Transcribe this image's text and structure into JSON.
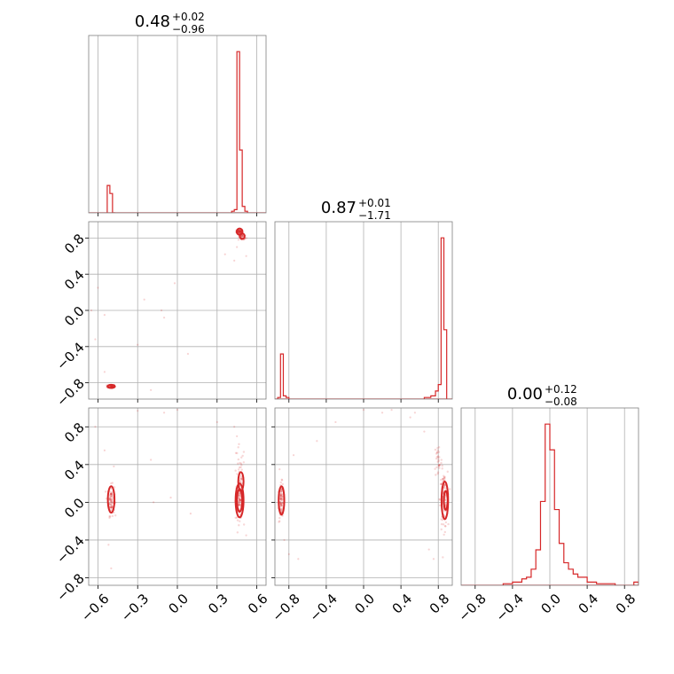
{
  "chart_data": {
    "type": "corner",
    "color": "#d62728",
    "grid": true,
    "panels": [
      {
        "kind": "histogram",
        "row": 0,
        "col": 0,
        "title": {
          "value": "0.48",
          "upper": "+0.02",
          "lower": "−0.96"
        },
        "xlim": [
          -0.67,
          0.67
        ],
        "ylim": [
          0,
          1.1
        ],
        "bins": [
          {
            "x0": -0.53,
            "x1": -0.51,
            "y": 0.17
          },
          {
            "x0": -0.51,
            "x1": -0.49,
            "y": 0.12
          },
          {
            "x0": -0.49,
            "x1": -0.47,
            "y": 0.0
          },
          {
            "x0": 0.41,
            "x1": 0.43,
            "y": 0.01
          },
          {
            "x0": 0.43,
            "x1": 0.45,
            "y": 0.02
          },
          {
            "x0": 0.45,
            "x1": 0.47,
            "y": 1.0
          },
          {
            "x0": 0.47,
            "x1": 0.49,
            "y": 0.39
          },
          {
            "x0": 0.49,
            "x1": 0.51,
            "y": 0.04
          },
          {
            "x0": 0.51,
            "x1": 0.53,
            "y": 0.01
          }
        ]
      },
      {
        "kind": "histogram",
        "row": 1,
        "col": 1,
        "title": {
          "value": "0.87",
          "upper": "+0.01",
          "lower": "−1.71"
        },
        "xlim": [
          -0.95,
          0.95
        ],
        "ylim": [
          0,
          1.1
        ],
        "bins": [
          {
            "x0": -0.92,
            "x1": -0.89,
            "y": 0.01
          },
          {
            "x0": -0.89,
            "x1": -0.86,
            "y": 0.28
          },
          {
            "x0": -0.86,
            "x1": -0.83,
            "y": 0.02
          },
          {
            "x0": -0.83,
            "x1": -0.8,
            "y": 0.01
          },
          {
            "x0": 0.65,
            "x1": 0.72,
            "y": 0.01
          },
          {
            "x0": 0.72,
            "x1": 0.77,
            "y": 0.02
          },
          {
            "x0": 0.77,
            "x1": 0.8,
            "y": 0.05
          },
          {
            "x0": 0.8,
            "x1": 0.83,
            "y": 0.09
          },
          {
            "x0": 0.83,
            "x1": 0.86,
            "y": 1.0
          },
          {
            "x0": 0.86,
            "x1": 0.89,
            "y": 0.43
          }
        ]
      },
      {
        "kind": "histogram",
        "row": 2,
        "col": 2,
        "title": {
          "value": "0.00",
          "upper": "+0.12",
          "lower": "−0.08"
        },
        "xlim": [
          -0.95,
          0.95
        ],
        "ylim": [
          0,
          1.1
        ],
        "bins": [
          {
            "x0": -0.5,
            "x1": -0.4,
            "y": 0.01
          },
          {
            "x0": -0.4,
            "x1": -0.3,
            "y": 0.02
          },
          {
            "x0": -0.3,
            "x1": -0.25,
            "y": 0.04
          },
          {
            "x0": -0.25,
            "x1": -0.2,
            "y": 0.05
          },
          {
            "x0": -0.2,
            "x1": -0.15,
            "y": 0.1
          },
          {
            "x0": -0.15,
            "x1": -0.1,
            "y": 0.22
          },
          {
            "x0": -0.1,
            "x1": -0.05,
            "y": 0.52
          },
          {
            "x0": -0.05,
            "x1": 0.0,
            "y": 1.0
          },
          {
            "x0": 0.0,
            "x1": 0.05,
            "y": 0.84
          },
          {
            "x0": 0.05,
            "x1": 0.1,
            "y": 0.47
          },
          {
            "x0": 0.1,
            "x1": 0.15,
            "y": 0.26
          },
          {
            "x0": 0.15,
            "x1": 0.2,
            "y": 0.14
          },
          {
            "x0": 0.2,
            "x1": 0.25,
            "y": 0.1
          },
          {
            "x0": 0.25,
            "x1": 0.3,
            "y": 0.07
          },
          {
            "x0": 0.3,
            "x1": 0.4,
            "y": 0.05
          },
          {
            "x0": 0.4,
            "x1": 0.5,
            "y": 0.02
          },
          {
            "x0": 0.5,
            "x1": 0.7,
            "y": 0.01
          },
          {
            "x0": 0.9,
            "x1": 0.95,
            "y": 0.02
          }
        ]
      },
      {
        "kind": "scatter",
        "row": 1,
        "col": 0,
        "xlim": [
          -0.67,
          0.67
        ],
        "ylim": [
          -0.98,
          0.98
        ],
        "clusters": [
          {
            "cx": 0.47,
            "cy": 0.87,
            "sx": 0.012,
            "sy": 0.012,
            "n": 70
          },
          {
            "cx": 0.49,
            "cy": 0.81,
            "sx": 0.015,
            "sy": 0.02,
            "n": 40
          },
          {
            "cx": -0.5,
            "cy": -0.84,
            "sx": 0.015,
            "sy": 0.01,
            "n": 60
          }
        ],
        "outliers": [
          [
            -0.6,
            0.25
          ],
          [
            -0.55,
            -0.05
          ],
          [
            -0.3,
            -0.38
          ],
          [
            -0.25,
            0.12
          ],
          [
            -0.12,
            0.0
          ],
          [
            -0.1,
            -0.08
          ],
          [
            -0.02,
            0.3
          ],
          [
            0.08,
            -0.48
          ],
          [
            0.36,
            0.62
          ],
          [
            0.43,
            0.55
          ],
          [
            -0.62,
            -0.32
          ],
          [
            -0.55,
            -0.68
          ],
          [
            -0.2,
            -0.88
          ],
          [
            0.45,
            0.7
          ],
          [
            0.52,
            0.6
          ],
          [
            -0.65,
            0.0
          ]
        ],
        "contours": [
          {
            "cx": 0.47,
            "cy": 0.87,
            "rx": 0.022,
            "ry": 0.035
          },
          {
            "cx": 0.49,
            "cy": 0.82,
            "rx": 0.018,
            "ry": 0.03
          },
          {
            "cx": -0.5,
            "cy": -0.84,
            "rx": 0.028,
            "ry": 0.018
          }
        ]
      },
      {
        "kind": "scatter",
        "row": 2,
        "col": 0,
        "xlim": [
          -0.67,
          0.67
        ],
        "ylim": [
          -0.88,
          1.0
        ],
        "clusters": [
          {
            "cx": -0.5,
            "cy": 0.02,
            "sx": 0.012,
            "sy": 0.08,
            "n": 90
          },
          {
            "cx": 0.47,
            "cy": 0.02,
            "sx": 0.015,
            "sy": 0.1,
            "n": 120
          },
          {
            "cx": 0.47,
            "cy": 0.3,
            "sx": 0.02,
            "sy": 0.15,
            "n": 30
          }
        ],
        "outliers": [
          [
            -0.55,
            0.55
          ],
          [
            -0.48,
            0.38
          ],
          [
            -0.52,
            -0.45
          ],
          [
            -0.5,
            -0.7
          ],
          [
            -0.2,
            0.45
          ],
          [
            -0.1,
            0.95
          ],
          [
            0.0,
            0.98
          ],
          [
            -0.05,
            0.05
          ],
          [
            0.3,
            0.85
          ],
          [
            0.43,
            0.8
          ],
          [
            0.52,
            -0.35
          ],
          [
            -0.3,
            0.97
          ],
          [
            0.1,
            -0.12
          ],
          [
            -0.18,
            0.0
          ],
          [
            0.45,
            0.7
          ],
          [
            -0.62,
            0.8
          ]
        ],
        "contours": [
          {
            "cx": -0.5,
            "cy": 0.03,
            "rx": 0.025,
            "ry": 0.14
          },
          {
            "cx": 0.47,
            "cy": 0.02,
            "rx": 0.03,
            "ry": 0.18
          },
          {
            "cx": 0.47,
            "cy": 0.02,
            "rx": 0.02,
            "ry": 0.12
          },
          {
            "cx": 0.48,
            "cy": 0.22,
            "rx": 0.02,
            "ry": 0.1
          }
        ]
      },
      {
        "kind": "scatter",
        "row": 2,
        "col": 1,
        "xlim": [
          -0.95,
          0.95
        ],
        "ylim": [
          -0.88,
          1.0
        ],
        "clusters": [
          {
            "cx": -0.88,
            "cy": 0.02,
            "sx": 0.012,
            "sy": 0.09,
            "n": 90
          },
          {
            "cx": 0.86,
            "cy": 0.02,
            "sx": 0.02,
            "sy": 0.15,
            "n": 120
          },
          {
            "cx": 0.8,
            "cy": 0.45,
            "sx": 0.02,
            "sy": 0.1,
            "n": 30
          }
        ],
        "outliers": [
          [
            -0.85,
            -0.4
          ],
          [
            -0.8,
            -0.55
          ],
          [
            -0.7,
            -0.6
          ],
          [
            -0.75,
            0.5
          ],
          [
            -0.5,
            0.65
          ],
          [
            -0.3,
            0.85
          ],
          [
            0.0,
            0.98
          ],
          [
            0.2,
            0.95
          ],
          [
            0.5,
            0.9
          ],
          [
            0.65,
            0.75
          ],
          [
            0.7,
            -0.5
          ],
          [
            0.75,
            -0.6
          ],
          [
            -0.9,
            0.35
          ],
          [
            0.3,
            0.98
          ],
          [
            0.55,
            0.95
          ],
          [
            -0.9,
            -0.2
          ]
        ],
        "contours": [
          {
            "cx": -0.88,
            "cy": 0.02,
            "rx": 0.03,
            "ry": 0.15
          },
          {
            "cx": 0.87,
            "cy": 0.02,
            "rx": 0.035,
            "ry": 0.2
          },
          {
            "cx": 0.88,
            "cy": 0.02,
            "rx": 0.02,
            "ry": 0.1
          }
        ]
      }
    ],
    "axes": [
      {
        "xticks": [
          -0.6,
          -0.3,
          0.0,
          0.3,
          0.6
        ],
        "xtick_labels": [
          "−0.6",
          "−0.3",
          "0.0",
          "0.3",
          "0.6"
        ]
      },
      {
        "xticks": [
          -0.8,
          -0.4,
          0.0,
          0.4,
          0.8
        ],
        "xtick_labels": [
          "−0.8",
          "−0.4",
          "0.0",
          "0.4",
          "0.8"
        ]
      },
      {
        "xticks": [
          -0.8,
          -0.4,
          0.0,
          0.4,
          0.8
        ],
        "xtick_labels": [
          "−0.8",
          "−0.4",
          "0.0",
          "0.4",
          "0.8"
        ]
      }
    ],
    "row_axes": [
      null,
      {
        "yticks": [
          -0.8,
          -0.4,
          0.0,
          0.4,
          0.8
        ],
        "ytick_labels": [
          "−0.8",
          "−0.4",
          "0.0",
          "0.4",
          "0.8"
        ]
      },
      {
        "yticks": [
          -0.8,
          -0.4,
          0.0,
          0.4,
          0.8
        ],
        "ytick_labels": [
          "−0.8",
          "−0.4",
          "0.0",
          "0.4",
          "0.8"
        ]
      }
    ]
  }
}
